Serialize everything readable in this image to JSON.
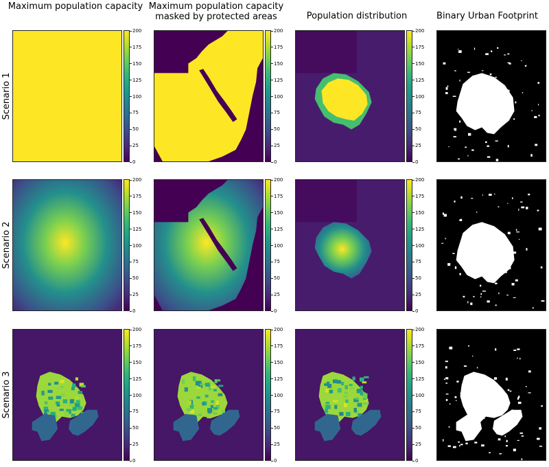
{
  "column_titles": [
    "Maximum population capacity",
    "Maximum population capacity masked by protected areas",
    "Population distribution",
    "Binary Urban Footprint"
  ],
  "row_labels": [
    "Scenario 1",
    "Scenario 2",
    "Scenario 3"
  ],
  "colors": {
    "viridis": [
      "#440154",
      "#482777",
      "#3e4989",
      "#31688e",
      "#26828e",
      "#1f9e89",
      "#35b779",
      "#6ece58",
      "#b5de2b",
      "#fde725"
    ],
    "background_low": "#440154",
    "urban_white": "#ffffff",
    "non_urban_black": "#000000"
  },
  "chart_data": {
    "type": "heatmap",
    "colorbar": {
      "min": 0,
      "max": 200,
      "ticks": [
        0,
        25,
        50,
        75,
        100,
        125,
        150,
        175,
        200
      ]
    },
    "panels": [
      {
        "row": "Scenario 1",
        "column": "Maximum population capacity",
        "description_value": 200
      },
      {
        "row": "Scenario 1",
        "column": "Maximum population capacity masked by protected areas",
        "unmasked_value": 200,
        "masked_value": 0
      },
      {
        "row": "Scenario 1",
        "column": "Population distribution",
        "urban_core_value": 200
      },
      {
        "row": "Scenario 1",
        "column": "Binary Urban Footprint"
      },
      {
        "row": "Scenario 2",
        "column": "Maximum population capacity",
        "center_value": 200,
        "edge_value": 0
      },
      {
        "row": "Scenario 2",
        "column": "Maximum population capacity masked by protected areas",
        "center_value": 200
      },
      {
        "row": "Scenario 2",
        "column": "Population distribution",
        "urban_core_value": 200
      },
      {
        "row": "Scenario 2",
        "column": "Binary Urban Footprint"
      },
      {
        "row": "Scenario 3",
        "column": "Maximum population capacity",
        "urban_core_value": 175
      },
      {
        "row": "Scenario 3",
        "column": "Maximum population capacity masked by protected areas",
        "urban_core_value": 175
      },
      {
        "row": "Scenario 3",
        "column": "Population distribution",
        "urban_core_value": 175
      },
      {
        "row": "Scenario 3",
        "column": "Binary Urban Footprint"
      }
    ]
  }
}
